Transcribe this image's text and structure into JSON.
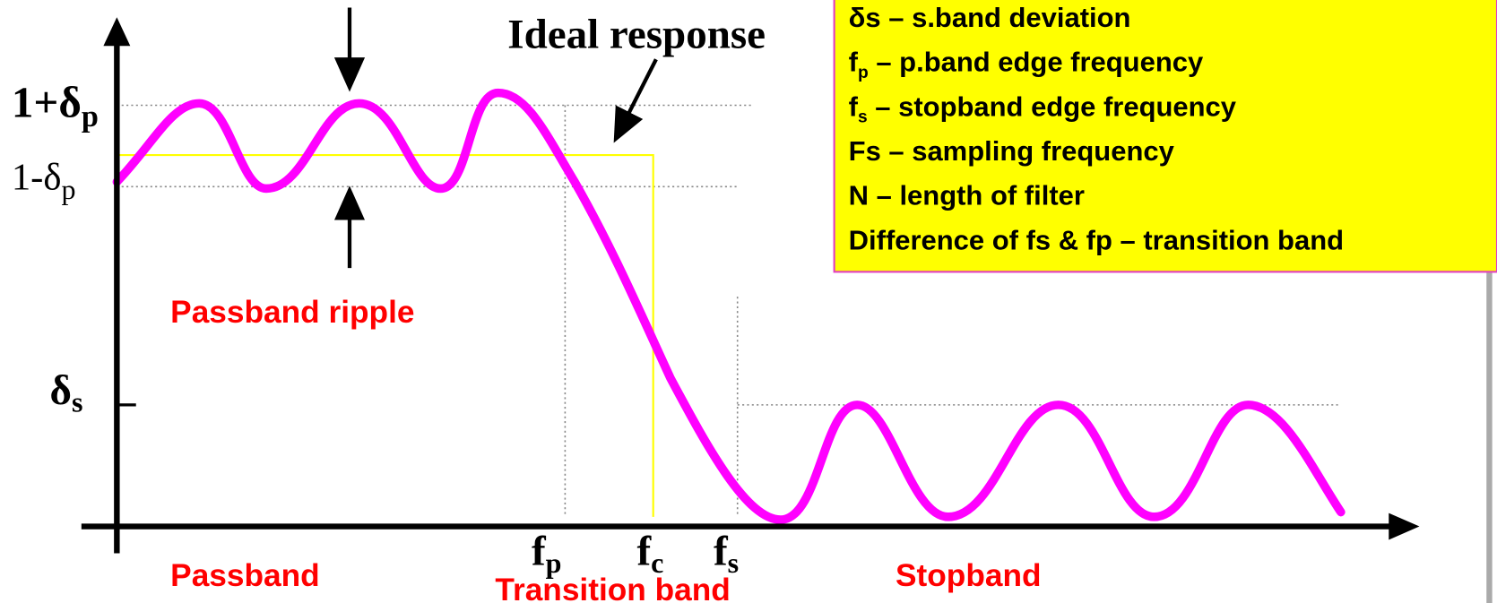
{
  "ideal_response": "Ideal response",
  "y_labels": [
    {
      "main": "1+δ",
      "sub": "p"
    },
    {
      "main": "1-δ",
      "sub": "p"
    },
    {
      "main": "δ",
      "sub": "s"
    }
  ],
  "x_labels": [
    {
      "main": "f",
      "sub": "p"
    },
    {
      "main": "f",
      "sub": "c"
    },
    {
      "main": "f",
      "sub": "s"
    }
  ],
  "passband_ripple": "Passband ripple",
  "regions": {
    "passband": "Passband",
    "transition": "Transition band",
    "stopband": "Stopband"
  },
  "legend": [
    {
      "text": "δs – s.band deviation"
    },
    {
      "symbol": "f",
      "sub": "p",
      "text": " – p.band edge frequency"
    },
    {
      "symbol": "f",
      "sub": "s",
      "text": " – stopband edge frequency"
    },
    {
      "text": "Fs – sampling frequency"
    },
    {
      "text": "N – length of filter"
    },
    {
      "text": "Difference of fs & fp – transition band"
    }
  ]
}
